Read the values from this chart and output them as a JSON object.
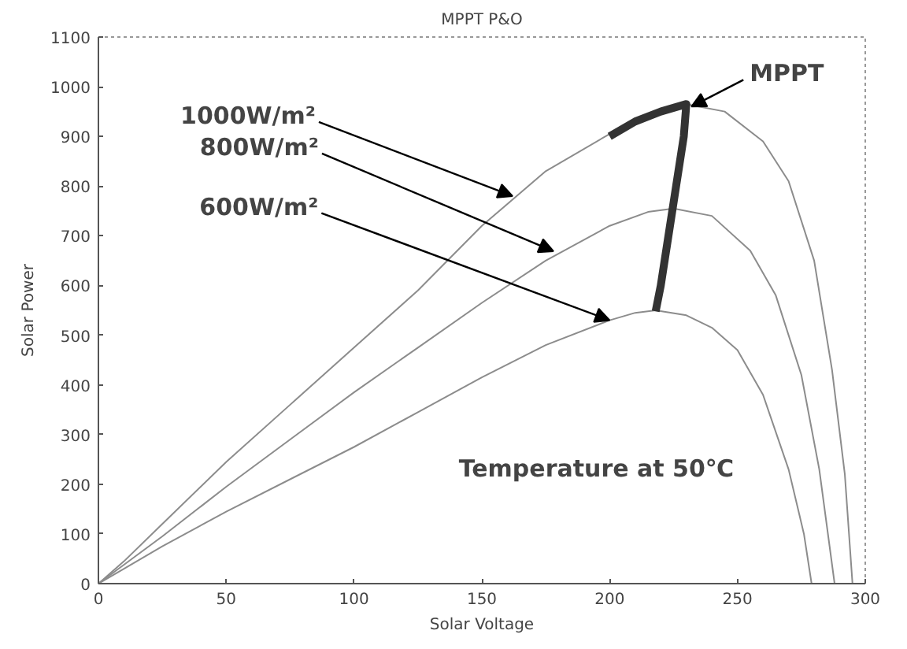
{
  "chart_data": {
    "type": "line",
    "title": "MPPT P&O",
    "xlabel": "Solar Voltage",
    "ylabel": "Solar Power",
    "xlim": [
      0,
      300
    ],
    "ylim": [
      0,
      1100
    ],
    "xticks": [
      0,
      50,
      100,
      150,
      200,
      250,
      300
    ],
    "yticks": [
      0,
      100,
      200,
      300,
      400,
      500,
      600,
      700,
      800,
      900,
      1000,
      1100
    ],
    "grid": false,
    "marker": "none",
    "line_style": "solid",
    "series": [
      {
        "color": "#8c8c8c",
        "x": [
          0,
          10,
          25,
          50,
          75,
          100,
          125,
          150,
          175,
          200,
          215,
          230,
          245,
          260,
          270,
          280,
          287,
          292,
          295
        ],
        "values": [
          0,
          45,
          120,
          245,
          360,
          475,
          590,
          720,
          830,
          905,
          940,
          965,
          950,
          890,
          810,
          650,
          430,
          220,
          0
        ]
      },
      {
        "color": "#8c8c8c",
        "x": [
          0,
          10,
          25,
          50,
          75,
          100,
          125,
          150,
          175,
          200,
          215,
          225,
          240,
          255,
          265,
          275,
          282,
          288
        ],
        "values": [
          0,
          38,
          95,
          195,
          290,
          385,
          475,
          565,
          650,
          720,
          748,
          755,
          740,
          670,
          580,
          420,
          230,
          0
        ]
      },
      {
        "color": "#8c8c8c",
        "x": [
          0,
          10,
          25,
          50,
          75,
          100,
          125,
          150,
          175,
          200,
          210,
          218,
          230,
          240,
          250,
          260,
          270,
          276,
          279
        ],
        "values": [
          0,
          30,
          75,
          145,
          210,
          275,
          345,
          415,
          480,
          530,
          545,
          550,
          540,
          515,
          470,
          380,
          230,
          100,
          0
        ]
      },
      {
        "color": "#333333",
        "x": [
          200,
          210,
          220,
          230,
          229,
          226,
          223,
          220,
          218
        ],
        "values": [
          900,
          930,
          950,
          965,
          900,
          800,
          700,
          600,
          548
        ]
      }
    ],
    "annotations": [
      {
        "text": "1000W/m²",
        "x": 162,
        "y": 780
      },
      {
        "text": "800W/m²",
        "x": 178,
        "y": 669
      },
      {
        "text": "600W/m²",
        "x": 200,
        "y": 530
      },
      {
        "text": "MPPT",
        "x": 232,
        "y": 960
      },
      "Temperature at 50℃"
    ]
  }
}
